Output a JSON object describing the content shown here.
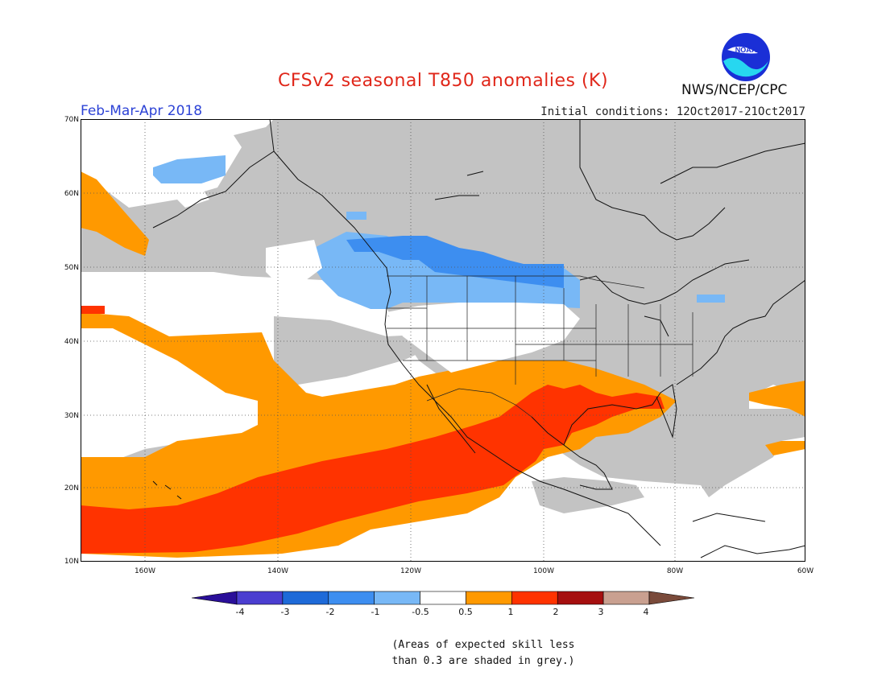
{
  "header": {
    "title": "CFSv2 seasonal T850 anomalies (K)",
    "period": "Feb-Mar-Apr 2018",
    "initial_conditions": "Initial conditions: 12Oct2017-21Oct2017",
    "agency": "NWS/NCEP/CPC",
    "logo_text": "NOAA"
  },
  "axes": {
    "lat_labels": [
      "70N",
      "60N",
      "50N",
      "40N",
      "30N",
      "20N",
      "10N"
    ],
    "lon_labels": [
      "160W",
      "140W",
      "120W",
      "100W",
      "80W",
      "60W"
    ]
  },
  "colorbar": {
    "labels": [
      "-4",
      "-3",
      "-2",
      "-1",
      "-0.5",
      "0.5",
      "1",
      "2",
      "3",
      "4"
    ],
    "colors": [
      "#2a0f99",
      "#4b3ed0",
      "#1e6ad8",
      "#3d8ef0",
      "#78b8f6",
      "#ffffff",
      "#ff9900",
      "#ff3300",
      "#a50f0f",
      "#c9a090",
      "#7a4a3a"
    ]
  },
  "legend_note": {
    "line1": "(Areas of expected skill less",
    "line2": "than 0.3 are shaded in grey.)"
  },
  "colors": {
    "grey_mask": "#c3c3c3",
    "orange": "#ff9900",
    "red": "#ff3300",
    "light_blue": "#78b8f6",
    "blue": "#3d8ef0"
  }
}
